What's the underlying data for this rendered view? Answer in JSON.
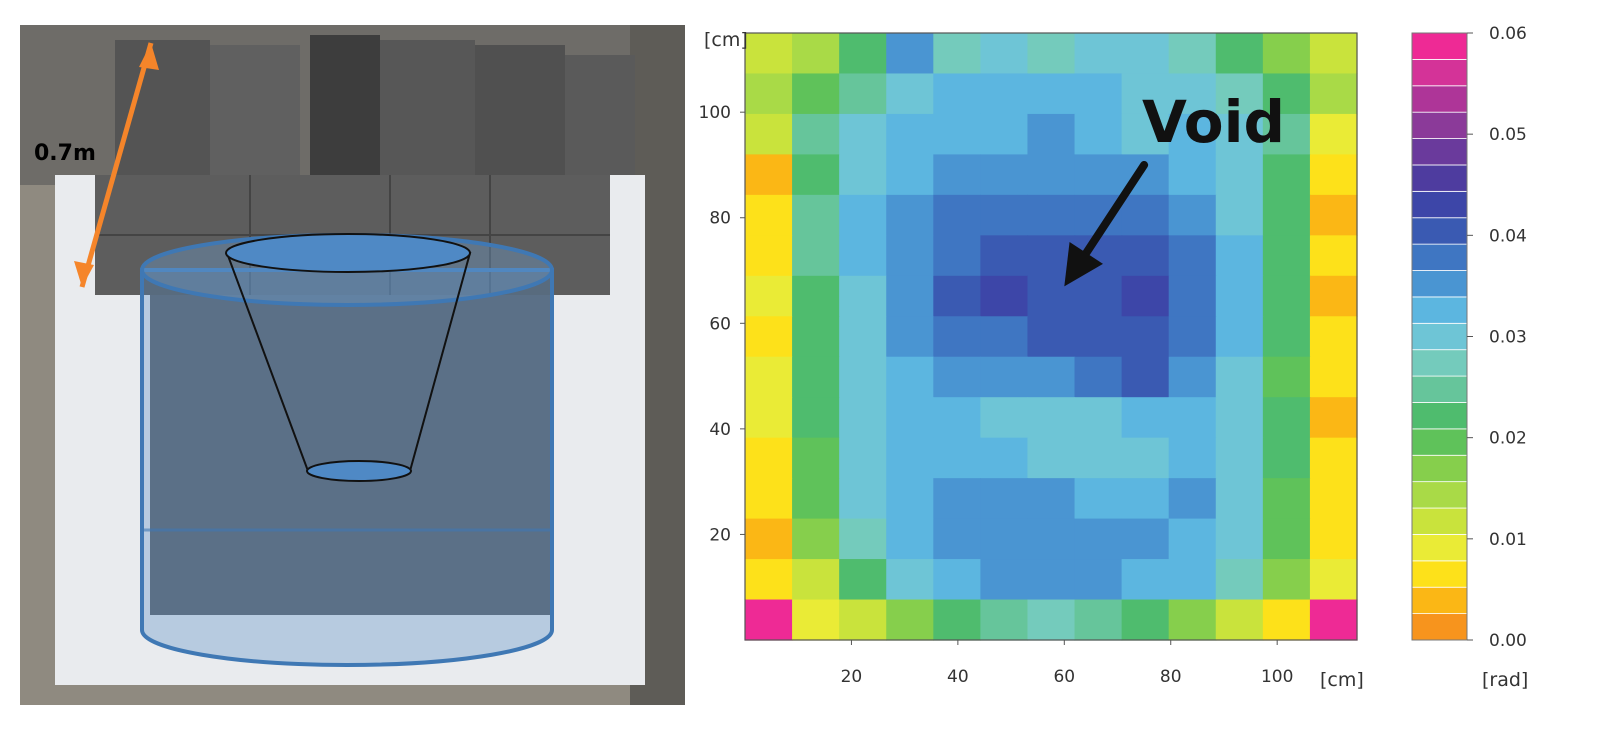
{
  "photo": {
    "dimension_label": "0.7m",
    "arrow_color": "#f5852a",
    "cylinder_color": "#4f89c5"
  },
  "chart_data": {
    "type": "heatmap",
    "title": "",
    "xlabel": "",
    "ylabel": "",
    "x_unit": "[cm]",
    "y_unit": "[cm]",
    "xlim": [
      0,
      115
    ],
    "ylim": [
      0,
      115
    ],
    "x_ticks": [
      20,
      40,
      60,
      80,
      100
    ],
    "y_ticks": [
      20,
      40,
      60,
      80,
      100
    ],
    "colorbar": {
      "unit": "[rad]",
      "min": 0.0,
      "max": 0.06,
      "tick_values": [
        0.0,
        0.01,
        0.02,
        0.03,
        0.04,
        0.05,
        0.06
      ],
      "tick_labels": [
        "0.00",
        "0.01",
        "0.02",
        "0.03",
        "0.04",
        "0.05",
        "0.06"
      ],
      "colors": [
        "#f7941d",
        "#fbb715",
        "#fde11a",
        "#eaeb36",
        "#c9e33c",
        "#a9da47",
        "#86cf4c",
        "#5fc25a",
        "#4fbc6e",
        "#66c59b",
        "#74cbbc",
        "#6ec5d6",
        "#5cb6e0",
        "#4a95d2",
        "#3f76c2",
        "#3a5ab2",
        "#3d46a8",
        "#4e3c9f",
        "#6a3a9c",
        "#8b3a99",
        "#ae3598",
        "#d43398",
        "#ee2a95"
      ]
    },
    "annotation": {
      "text": "Void",
      "arrow_from": [
        75,
        90
      ],
      "arrow_to": [
        60,
        67
      ]
    },
    "values": [
      [
        0.012,
        0.015,
        0.022,
        0.035,
        0.028,
        0.03,
        0.028,
        0.03,
        0.03,
        0.028,
        0.022,
        0.018,
        0.012
      ],
      [
        0.015,
        0.02,
        0.026,
        0.03,
        0.033,
        0.032,
        0.032,
        0.033,
        0.03,
        0.03,
        0.028,
        0.022,
        0.015
      ],
      [
        0.012,
        0.025,
        0.03,
        0.032,
        0.033,
        0.032,
        0.034,
        0.033,
        0.031,
        0.032,
        0.029,
        0.024,
        0.01
      ],
      [
        0.005,
        0.022,
        0.03,
        0.033,
        0.035,
        0.036,
        0.035,
        0.035,
        0.034,
        0.033,
        0.03,
        0.022,
        0.006
      ],
      [
        0.006,
        0.024,
        0.032,
        0.035,
        0.037,
        0.038,
        0.038,
        0.037,
        0.038,
        0.036,
        0.031,
        0.022,
        0.005
      ],
      [
        0.006,
        0.024,
        0.032,
        0.036,
        0.039,
        0.04,
        0.041,
        0.04,
        0.04,
        0.038,
        0.032,
        0.023,
        0.006
      ],
      [
        0.008,
        0.022,
        0.031,
        0.036,
        0.04,
        0.042,
        0.041,
        0.041,
        0.042,
        0.039,
        0.033,
        0.022,
        0.005
      ],
      [
        0.007,
        0.022,
        0.03,
        0.034,
        0.037,
        0.039,
        0.04,
        0.041,
        0.041,
        0.038,
        0.032,
        0.021,
        0.006
      ],
      [
        0.009,
        0.021,
        0.03,
        0.032,
        0.034,
        0.035,
        0.036,
        0.039,
        0.04,
        0.036,
        0.03,
        0.02,
        0.006
      ],
      [
        0.008,
        0.022,
        0.031,
        0.032,
        0.033,
        0.031,
        0.03,
        0.031,
        0.033,
        0.033,
        0.031,
        0.021,
        0.004
      ],
      [
        0.006,
        0.02,
        0.031,
        0.033,
        0.033,
        0.032,
        0.031,
        0.03,
        0.031,
        0.033,
        0.03,
        0.021,
        0.006
      ],
      [
        0.006,
        0.019,
        0.03,
        0.033,
        0.034,
        0.035,
        0.034,
        0.033,
        0.033,
        0.034,
        0.03,
        0.02,
        0.006
      ],
      [
        0.005,
        0.017,
        0.028,
        0.032,
        0.034,
        0.035,
        0.036,
        0.035,
        0.034,
        0.033,
        0.03,
        0.02,
        0.007
      ],
      [
        0.006,
        0.013,
        0.023,
        0.03,
        0.033,
        0.034,
        0.035,
        0.034,
        0.033,
        0.032,
        0.027,
        0.016,
        0.008
      ],
      [
        0.06,
        0.008,
        0.011,
        0.018,
        0.022,
        0.026,
        0.028,
        0.025,
        0.022,
        0.018,
        0.012,
        0.006,
        0.06
      ]
    ]
  }
}
